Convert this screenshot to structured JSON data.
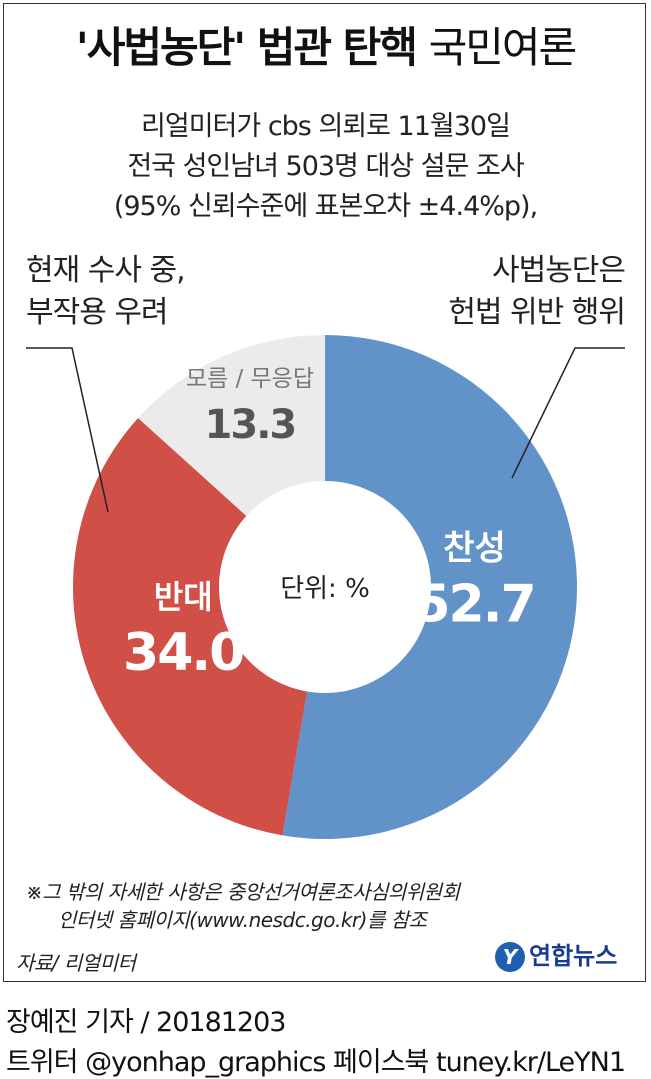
{
  "header": {
    "title_bold": "'사법농단' 법관 탄핵",
    "title_light": "국민여론",
    "sub1": "리얼미터가 cbs 의뢰로 11월30일",
    "sub2": "전국 성인남녀 503명 대상 설문 조사",
    "sub3": "(95% 신뢰수준에 표본오차 ±4.4%p),"
  },
  "callouts": {
    "left_line1": "현재 수사 중,",
    "left_line2": "부작용 우려",
    "right_line1": "사법농단은",
    "right_line2": "헌법 위반 행위"
  },
  "chart_data": {
    "type": "pie",
    "style": "donut",
    "unit_label": "단위: %",
    "slices": [
      {
        "label": "찬성",
        "value": 52.7,
        "value_label": "52.7",
        "color": "#6193c9"
      },
      {
        "label": "반대",
        "value": 34.0,
        "value_label": "34.0",
        "color": "#d04f47"
      },
      {
        "label": "모름 / 무응답",
        "value": 13.3,
        "value_label": "13.3",
        "color": "#ebebeb"
      }
    ]
  },
  "notes": {
    "line1": "※그 밖의 자세한 사항은 중앙선거여론조사심의위원회",
    "line2": "인터넷 홈페이지(www.nesdc.go.kr)를 참조",
    "source": "자료/ 리얼미터"
  },
  "logo": {
    "mark": "Y",
    "text": "연합뉴스"
  },
  "footer": {
    "reporter": "장예진 기자 / 20181203",
    "social": "트위터 @yonhap_graphics  페이스북 tuney.kr/LeYN1"
  }
}
